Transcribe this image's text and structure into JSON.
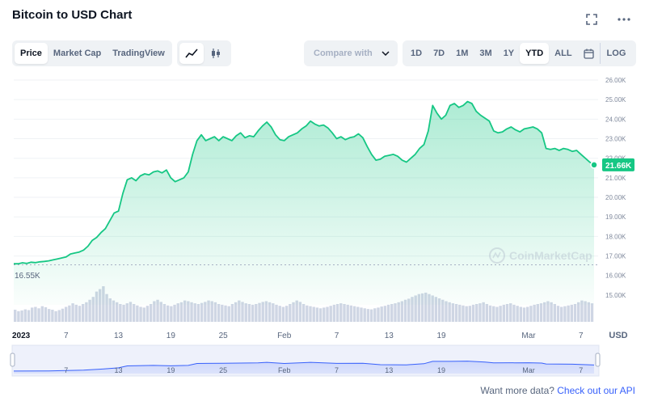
{
  "header": {
    "title": "Bitcoin to USD Chart"
  },
  "tabs": [
    {
      "label": "Price",
      "active": true
    },
    {
      "label": "Market Cap",
      "active": false
    },
    {
      "label": "TradingView",
      "active": false
    }
  ],
  "chart_types": [
    {
      "icon": "line-chart-icon",
      "active": true
    },
    {
      "icon": "candlestick-icon",
      "active": false
    }
  ],
  "compare": {
    "label": "Compare with"
  },
  "ranges": [
    {
      "label": "1D",
      "active": false
    },
    {
      "label": "7D",
      "active": false
    },
    {
      "label": "1M",
      "active": false
    },
    {
      "label": "3M",
      "active": false
    },
    {
      "label": "1Y",
      "active": false
    },
    {
      "label": "YTD",
      "active": true
    },
    {
      "label": "ALL",
      "active": false
    }
  ],
  "log_label": "LOG",
  "footer": {
    "prefix": "Want more data?",
    "link": "Check out our API"
  },
  "colors": {
    "line": "#16c784",
    "navigator": "#3861fb",
    "current_badge": "#16c784"
  },
  "chart_data": {
    "type": "area",
    "currency_label": "USD",
    "watermark": "CoinMarketCap",
    "y_ticks": [
      "26.00K",
      "25.00K",
      "24.00K",
      "23.00K",
      "22.00K",
      "21.00K",
      "20.00K",
      "19.00K",
      "18.00K",
      "17.00K",
      "16.00K",
      "15.00K"
    ],
    "ylim": [
      14500,
      26000
    ],
    "x_ticks": [
      {
        "label": "2023",
        "x": 0
      },
      {
        "label": "7",
        "x": 6
      },
      {
        "label": "13",
        "x": 12
      },
      {
        "label": "19",
        "x": 18
      },
      {
        "label": "25",
        "x": 24
      },
      {
        "label": "Feb",
        "x": 31
      },
      {
        "label": "7",
        "x": 37
      },
      {
        "label": "13",
        "x": 43
      },
      {
        "label": "19",
        "x": 49
      },
      {
        "label": "Mar",
        "x": 59
      },
      {
        "label": "7",
        "x": 65
      }
    ],
    "nav_ticks": [
      {
        "label": "7",
        "x": 6
      },
      {
        "label": "13",
        "x": 12
      },
      {
        "label": "19",
        "x": 18
      },
      {
        "label": "25",
        "x": 24
      },
      {
        "label": "Feb",
        "x": 31
      },
      {
        "label": "7",
        "x": 37
      },
      {
        "label": "13",
        "x": 43
      },
      {
        "label": "19",
        "x": 49
      },
      {
        "label": "Mar",
        "x": 59
      },
      {
        "label": "7",
        "x": 65
      }
    ],
    "xlim": [
      0,
      66.5
    ],
    "start_value_label": "16.55K",
    "start_value": 16550,
    "current_value_label": "21.66K",
    "current_value": 21660,
    "grid": true,
    "series": [
      {
        "points": [
          [
            0,
            16600
          ],
          [
            0.5,
            16600
          ],
          [
            1,
            16650
          ],
          [
            1.5,
            16620
          ],
          [
            2,
            16680
          ],
          [
            2.5,
            16660
          ],
          [
            3,
            16700
          ],
          [
            3.5,
            16720
          ],
          [
            4,
            16750
          ],
          [
            4.5,
            16800
          ],
          [
            5,
            16850
          ],
          [
            5.5,
            16900
          ],
          [
            6,
            16950
          ],
          [
            6.5,
            17100
          ],
          [
            7,
            17150
          ],
          [
            7.5,
            17200
          ],
          [
            8,
            17300
          ],
          [
            8.5,
            17500
          ],
          [
            9,
            17800
          ],
          [
            9.5,
            17950
          ],
          [
            10,
            18200
          ],
          [
            10.5,
            18400
          ],
          [
            11,
            18800
          ],
          [
            11.5,
            19200
          ],
          [
            12,
            19300
          ],
          [
            12.5,
            20200
          ],
          [
            13,
            20900
          ],
          [
            13.5,
            21000
          ],
          [
            14,
            20850
          ],
          [
            14.5,
            21100
          ],
          [
            15,
            21200
          ],
          [
            15.5,
            21150
          ],
          [
            16,
            21300
          ],
          [
            16.5,
            21350
          ],
          [
            17,
            21250
          ],
          [
            17.5,
            21400
          ],
          [
            18,
            21000
          ],
          [
            18.5,
            20800
          ],
          [
            19,
            20900
          ],
          [
            19.5,
            21000
          ],
          [
            20,
            21300
          ],
          [
            20.5,
            22200
          ],
          [
            21,
            22900
          ],
          [
            21.5,
            23200
          ],
          [
            22,
            22900
          ],
          [
            22.5,
            23000
          ],
          [
            23,
            23100
          ],
          [
            23.5,
            22900
          ],
          [
            24,
            23100
          ],
          [
            24.5,
            23000
          ],
          [
            25,
            22900
          ],
          [
            25.5,
            23150
          ],
          [
            26,
            23300
          ],
          [
            26.5,
            23050
          ],
          [
            27,
            23150
          ],
          [
            27.5,
            23100
          ],
          [
            28,
            23400
          ],
          [
            28.5,
            23650
          ],
          [
            29,
            23850
          ],
          [
            29.5,
            23600
          ],
          [
            30,
            23200
          ],
          [
            30.5,
            22950
          ],
          [
            31,
            22900
          ],
          [
            31.5,
            23100
          ],
          [
            32,
            23200
          ],
          [
            32.5,
            23300
          ],
          [
            33,
            23500
          ],
          [
            33.5,
            23650
          ],
          [
            34,
            23900
          ],
          [
            34.5,
            23750
          ],
          [
            35,
            23650
          ],
          [
            35.5,
            23700
          ],
          [
            36,
            23550
          ],
          [
            36.5,
            23300
          ],
          [
            37,
            23000
          ],
          [
            37.5,
            23100
          ],
          [
            38,
            22950
          ],
          [
            38.5,
            23050
          ],
          [
            39,
            23100
          ],
          [
            39.5,
            23250
          ],
          [
            40,
            23050
          ],
          [
            40.5,
            22600
          ],
          [
            41,
            22200
          ],
          [
            41.5,
            21900
          ],
          [
            42,
            21950
          ],
          [
            42.5,
            22100
          ],
          [
            43,
            22150
          ],
          [
            43.5,
            22200
          ],
          [
            44,
            22100
          ],
          [
            44.5,
            21900
          ],
          [
            45,
            21800
          ],
          [
            45.5,
            22000
          ],
          [
            46,
            22200
          ],
          [
            46.5,
            22500
          ],
          [
            47,
            22700
          ],
          [
            47.5,
            23400
          ],
          [
            48,
            24700
          ],
          [
            48.5,
            24300
          ],
          [
            49,
            24000
          ],
          [
            49.5,
            24200
          ],
          [
            50,
            24700
          ],
          [
            50.5,
            24800
          ],
          [
            51,
            24600
          ],
          [
            51.5,
            24700
          ],
          [
            52,
            24900
          ],
          [
            52.5,
            24800
          ],
          [
            53,
            24400
          ],
          [
            53.5,
            24200
          ],
          [
            54,
            24050
          ],
          [
            54.5,
            23900
          ],
          [
            55,
            23400
          ],
          [
            55.5,
            23300
          ],
          [
            56,
            23350
          ],
          [
            56.5,
            23500
          ],
          [
            57,
            23600
          ],
          [
            57.5,
            23450
          ],
          [
            58,
            23350
          ],
          [
            58.5,
            23500
          ],
          [
            59,
            23550
          ],
          [
            59.5,
            23600
          ],
          [
            60,
            23500
          ],
          [
            60.5,
            23300
          ],
          [
            61,
            22500
          ],
          [
            61.5,
            22450
          ],
          [
            62,
            22500
          ],
          [
            62.5,
            22400
          ],
          [
            63,
            22500
          ],
          [
            63.5,
            22450
          ],
          [
            64,
            22350
          ],
          [
            64.5,
            22400
          ],
          [
            65,
            22200
          ],
          [
            65.5,
            22000
          ],
          [
            66,
            21800
          ],
          [
            66.5,
            21660
          ]
        ]
      }
    ],
    "volume": [
      0.34,
      0.3,
      0.32,
      0.35,
      0.33,
      0.4,
      0.42,
      0.38,
      0.44,
      0.41,
      0.36,
      0.34,
      0.3,
      0.33,
      0.37,
      0.42,
      0.46,
      0.52,
      0.48,
      0.45,
      0.5,
      0.55,
      0.62,
      0.7,
      0.85,
      0.92,
      1.0,
      0.78,
      0.66,
      0.6,
      0.55,
      0.5,
      0.48,
      0.52,
      0.56,
      0.5,
      0.46,
      0.42,
      0.4,
      0.45,
      0.5,
      0.58,
      0.62,
      0.56,
      0.5,
      0.46,
      0.44,
      0.48,
      0.52,
      0.55,
      0.6,
      0.58,
      0.55,
      0.52,
      0.5,
      0.53,
      0.56,
      0.6,
      0.58,
      0.55,
      0.5,
      0.48,
      0.46,
      0.44,
      0.5,
      0.55,
      0.6,
      0.56,
      0.52,
      0.5,
      0.48,
      0.5,
      0.53,
      0.56,
      0.58,
      0.55,
      0.52,
      0.48,
      0.45,
      0.42,
      0.45,
      0.5,
      0.55,
      0.6,
      0.56,
      0.5,
      0.46,
      0.44,
      0.42,
      0.4,
      0.38,
      0.4,
      0.42,
      0.45,
      0.48,
      0.5,
      0.52,
      0.5,
      0.48,
      0.46,
      0.44,
      0.42,
      0.4,
      0.38,
      0.36,
      0.35,
      0.38,
      0.4,
      0.43,
      0.45,
      0.48,
      0.5,
      0.52,
      0.55,
      0.58,
      0.62,
      0.65,
      0.7,
      0.74,
      0.78,
      0.8,
      0.82,
      0.78,
      0.74,
      0.7,
      0.66,
      0.62,
      0.58,
      0.55,
      0.52,
      0.5,
      0.48,
      0.46,
      0.44,
      0.45,
      0.48,
      0.5,
      0.52,
      0.55,
      0.5,
      0.46,
      0.44,
      0.42,
      0.45,
      0.48,
      0.5,
      0.52,
      0.48,
      0.45,
      0.42,
      0.4,
      0.42,
      0.45,
      0.48,
      0.5,
      0.52,
      0.55,
      0.58,
      0.55,
      0.5,
      0.45,
      0.42,
      0.44,
      0.46,
      0.48,
      0.5,
      0.55,
      0.6,
      0.58,
      0.55,
      0.52
    ],
    "navigator_points": [
      [
        0,
        16600
      ],
      [
        4,
        16750
      ],
      [
        8,
        17300
      ],
      [
        10,
        18200
      ],
      [
        12,
        19300
      ],
      [
        13,
        20900
      ],
      [
        16,
        21300
      ],
      [
        18,
        21000
      ],
      [
        20,
        21300
      ],
      [
        21,
        22900
      ],
      [
        24,
        23100
      ],
      [
        28,
        23400
      ],
      [
        29,
        23850
      ],
      [
        31,
        22900
      ],
      [
        34,
        23900
      ],
      [
        37,
        23000
      ],
      [
        40,
        23050
      ],
      [
        42,
        21950
      ],
      [
        45,
        21800
      ],
      [
        47,
        22700
      ],
      [
        48,
        24700
      ],
      [
        50,
        24700
      ],
      [
        52,
        24900
      ],
      [
        54,
        24050
      ],
      [
        55,
        23400
      ],
      [
        59,
        23550
      ],
      [
        60.5,
        23300
      ],
      [
        61,
        22500
      ],
      [
        64,
        22350
      ],
      [
        66.5,
        21660
      ]
    ]
  }
}
